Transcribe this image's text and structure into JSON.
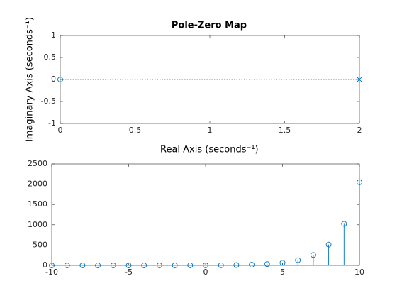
{
  "chart_data": [
    {
      "type": "pzmap",
      "title": "Pole-Zero Map",
      "xlabel": "Real Axis (seconds⁻¹)",
      "ylabel": "Imaginary Axis (seconds⁻¹)",
      "zeros": {
        "real": [
          0
        ],
        "imag": [
          0
        ]
      },
      "poles": {
        "real": [
          2
        ],
        "imag": [
          0
        ]
      },
      "color": "#0072bd",
      "xlim": [
        0,
        2
      ],
      "xticks": [
        0,
        0.5,
        1,
        1.5,
        2
      ],
      "ylim": [
        -1,
        1
      ],
      "yticks": [
        -1,
        -0.5,
        0,
        0.5,
        1
      ]
    },
    {
      "type": "stem",
      "x": [
        -10,
        -9,
        -8,
        -7,
        -6,
        -5,
        -4,
        -3,
        -2,
        -1,
        0,
        1,
        2,
        3,
        4,
        5,
        6,
        7,
        8,
        9,
        10
      ],
      "values": [
        0.001953125,
        0.00390625,
        0.0078125,
        0.015625,
        0.03125,
        0.0625,
        0.125,
        0.25,
        0.5,
        1,
        2,
        4,
        8,
        16,
        32,
        64,
        128,
        256,
        512,
        1024,
        2048
      ],
      "color": "#0072bd",
      "xlim": [
        -10,
        10
      ],
      "xticks": [
        -10,
        -5,
        0,
        5,
        10
      ],
      "ylim": [
        0,
        2500
      ],
      "yticks": [
        0,
        500,
        1000,
        1500,
        2000,
        2500
      ]
    }
  ]
}
